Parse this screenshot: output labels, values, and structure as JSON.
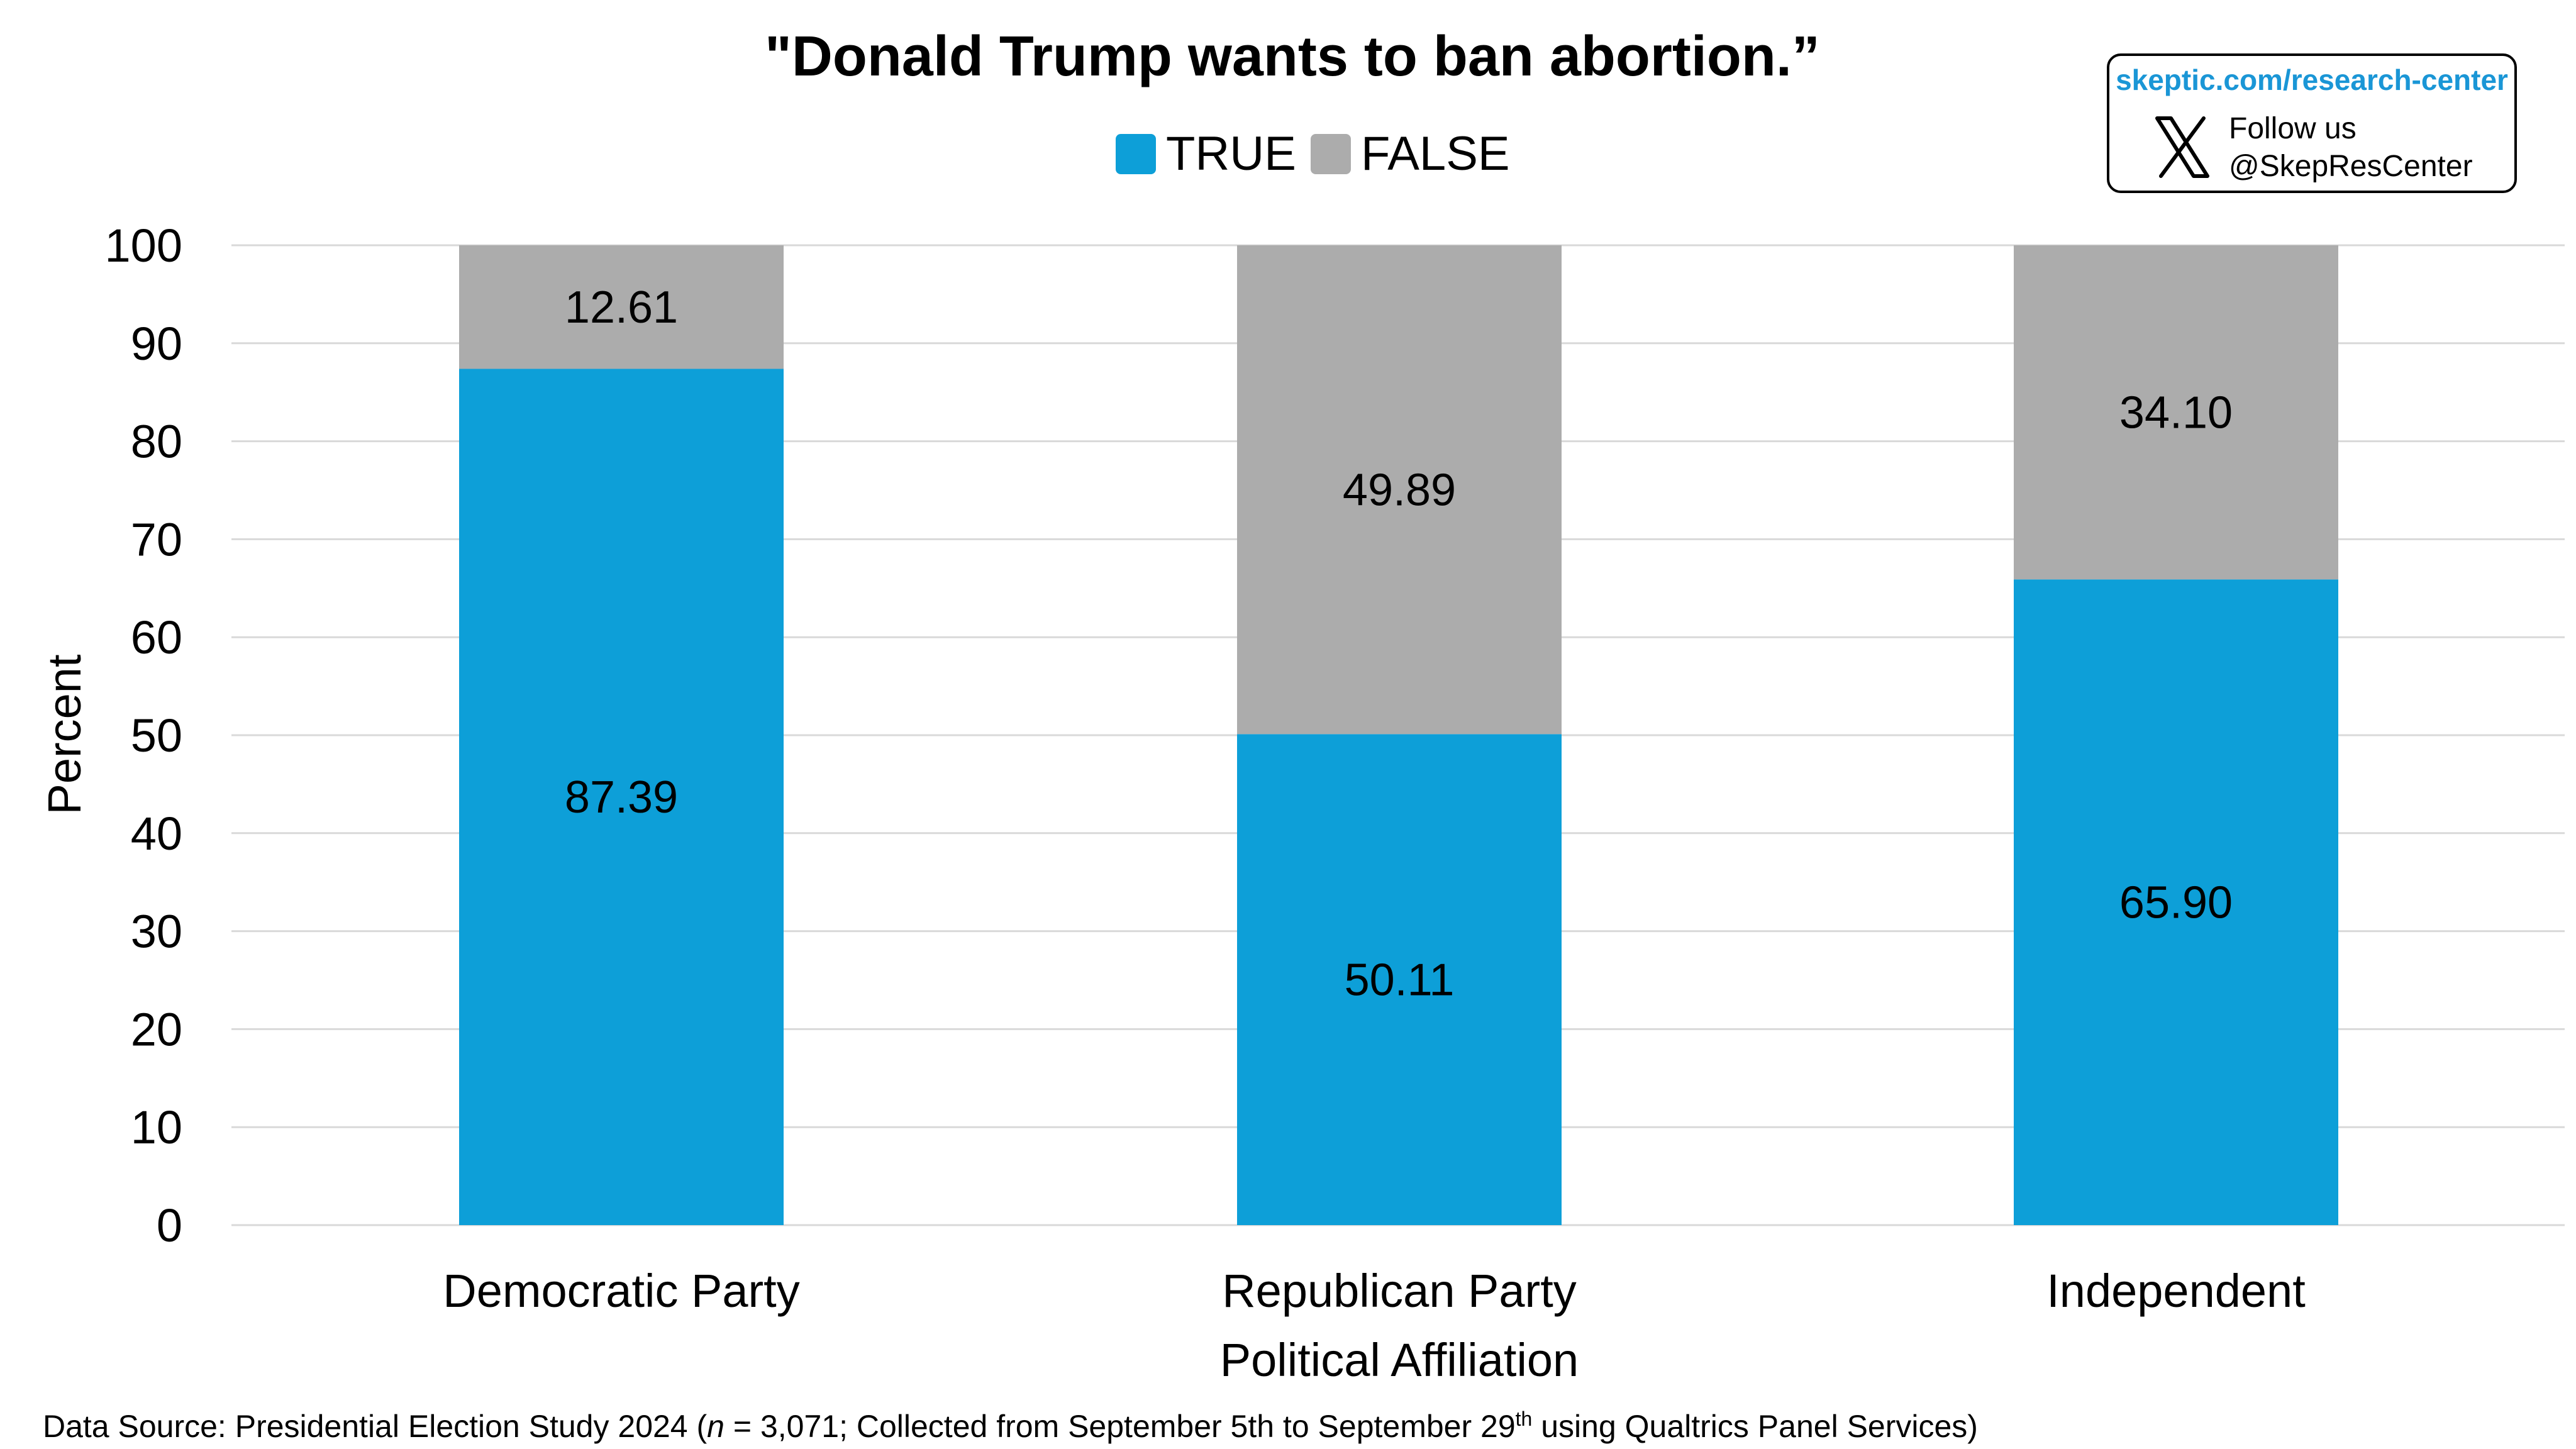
{
  "chart_data": {
    "type": "bar",
    "stacked": true,
    "title": "\"Donald Trump wants to ban abortion.”",
    "categories": [
      "Democratic Party",
      "Republican Party",
      "Independent"
    ],
    "series": [
      {
        "name": "TRUE",
        "color": "#0d9fd8",
        "values": [
          87.39,
          50.11,
          65.9
        ],
        "labels": [
          "87.39",
          "50.11",
          "65.90"
        ]
      },
      {
        "name": "FALSE",
        "color": "#acacac",
        "values": [
          12.61,
          49.89,
          34.1
        ],
        "labels": [
          "12.61",
          "49.89",
          "34.10"
        ]
      }
    ],
    "xlabel": "Political Affiliation",
    "ylabel": "Percent",
    "ylim": [
      0,
      100
    ],
    "yticks": [
      0,
      10,
      20,
      30,
      40,
      50,
      60,
      70,
      80,
      90,
      100
    ],
    "grid": true,
    "legend_position": "top-center"
  },
  "branding": {
    "url": "skeptic.com/research-center",
    "follow_text": "Follow us",
    "handle": "@SkepResCenter",
    "icon": "x-logo-icon",
    "url_color": "#1a96d6"
  },
  "source": {
    "prefix": "Data Source: Presidential Election Study 2024 (",
    "n_symbol": "n",
    "after_n": " = 3,071; Collected from September 5th to September 29",
    "superscript": "th",
    "suffix": " using Qualtrics Panel Services)"
  }
}
